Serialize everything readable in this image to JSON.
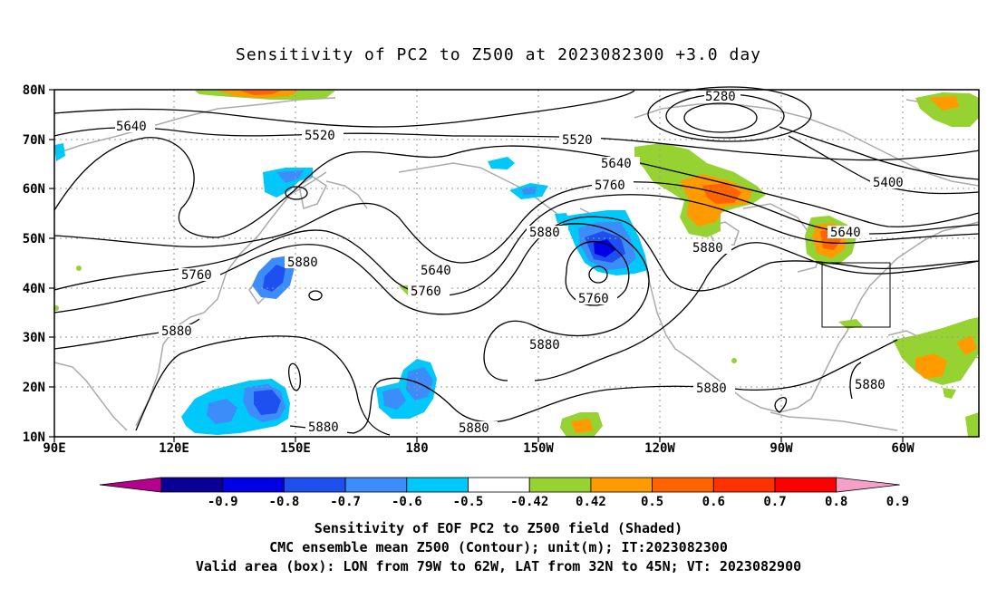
{
  "title": "Sensitivity of PC2 to Z500 at 2023082300 +3.0 day",
  "lon_ticks": [
    "90E",
    "120E",
    "150E",
    "180",
    "150W",
    "120W",
    "90W",
    "60W"
  ],
  "lat_ticks": [
    "10N",
    "20N",
    "30N",
    "40N",
    "50N",
    "60N",
    "70N",
    "80N"
  ],
  "contour_labels": [
    "5280",
    "5640",
    "5520",
    "5520",
    "5640",
    "5760",
    "5880",
    "5640",
    "5760",
    "5880",
    "5760",
    "5880",
    "5880",
    "5760",
    "5880",
    "5880",
    "5640",
    "5400",
    "5880",
    "5880",
    "5880"
  ],
  "colorbar": {
    "labels": [
      "-0.9",
      "-0.8",
      "-0.7",
      "-0.6",
      "-0.5",
      "-0.42",
      "0.42",
      "0.5",
      "0.6",
      "0.7",
      "0.8",
      "0.9"
    ],
    "colors": [
      "#b4008c",
      "#0a0096",
      "#0000e6",
      "#1e50f0",
      "#3c8cfa",
      "#00c8fa",
      "#ffffff",
      "#96d232",
      "#ff9b00",
      "#ff6400",
      "#ff3200",
      "#ff0000",
      "#f5a0c8"
    ]
  },
  "valid_box": {
    "lon_from": "79W",
    "lon_to": "62W",
    "lat_from": "32N",
    "lat_to": "45N"
  },
  "caption": [
    "Sensitivity of EOF PC2 to Z500 field (Shaded)",
    "CMC ensemble mean Z500 (Contour); unit(m); IT:2023082300",
    "Valid area (box): LON from 79W to 62W, LAT from 32N to 45N; VT: 2023082900"
  ]
}
